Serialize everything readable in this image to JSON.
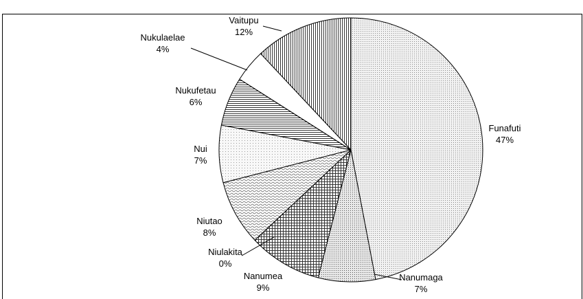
{
  "chart_data": {
    "type": "pie",
    "categories": [
      "Funafuti",
      "Nanumaga",
      "Nanumea",
      "Niulakita",
      "Niutao",
      "Nui",
      "Nukufetau",
      "Nukulaelae",
      "Vaitupu"
    ],
    "values": [
      47,
      7,
      9,
      0,
      8,
      7,
      6,
      4,
      12
    ],
    "value_labels": [
      "47%",
      "7%",
      "9%",
      "0%",
      "8%",
      "7%",
      "6%",
      "4%",
      "12%"
    ]
  }
}
